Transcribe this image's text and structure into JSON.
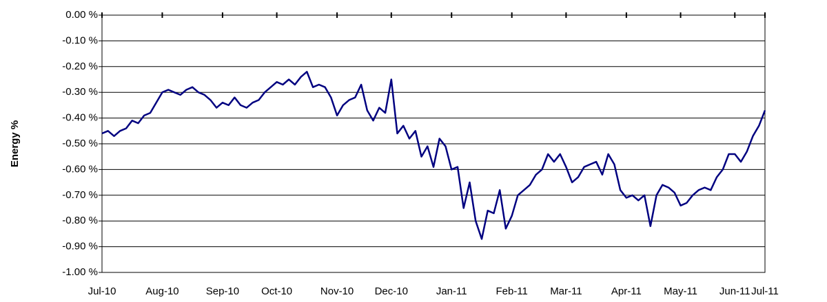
{
  "chart_data": {
    "type": "line",
    "ylabel": "Energy %",
    "categories": [
      "Jul-10",
      null,
      null,
      null,
      null,
      null,
      null,
      null,
      null,
      null,
      "Aug-10",
      null,
      null,
      null,
      null,
      null,
      null,
      null,
      null,
      null,
      "Sep-10",
      null,
      null,
      null,
      null,
      null,
      null,
      null,
      null,
      "Oct-10",
      null,
      null,
      null,
      null,
      null,
      null,
      null,
      null,
      null,
      "Nov-10",
      null,
      null,
      null,
      null,
      null,
      null,
      null,
      null,
      "Dec-10",
      null,
      null,
      null,
      null,
      null,
      null,
      null,
      null,
      null,
      "Jan-11",
      null,
      null,
      null,
      null,
      null,
      null,
      null,
      null,
      null,
      "Feb-11",
      null,
      null,
      null,
      null,
      null,
      null,
      null,
      null,
      "Mar-11",
      null,
      null,
      null,
      null,
      null,
      null,
      null,
      null,
      null,
      "Apr-11",
      null,
      null,
      null,
      null,
      null,
      null,
      null,
      null,
      "May-11",
      null,
      null,
      null,
      null,
      null,
      null,
      null,
      null,
      "Jun-11",
      null,
      null,
      null,
      null,
      "Jul-11"
    ],
    "series": [
      {
        "name": "Energy",
        "color": "#000080",
        "values": [
          -0.46,
          -0.45,
          -0.47,
          -0.45,
          -0.44,
          -0.41,
          -0.42,
          -0.39,
          -0.38,
          -0.34,
          -0.3,
          -0.29,
          -0.3,
          -0.31,
          -0.29,
          -0.28,
          -0.3,
          -0.31,
          -0.33,
          -0.36,
          -0.34,
          -0.35,
          -0.32,
          -0.35,
          -0.36,
          -0.34,
          -0.33,
          -0.3,
          -0.28,
          -0.26,
          -0.27,
          -0.25,
          -0.27,
          -0.24,
          -0.22,
          -0.28,
          -0.27,
          -0.28,
          -0.32,
          -0.39,
          -0.35,
          -0.33,
          -0.32,
          -0.27,
          -0.37,
          -0.41,
          -0.36,
          -0.38,
          -0.25,
          -0.46,
          -0.43,
          -0.48,
          -0.45,
          -0.55,
          -0.51,
          -0.59,
          -0.48,
          -0.51,
          -0.6,
          -0.59,
          -0.75,
          -0.65,
          -0.8,
          -0.87,
          -0.76,
          -0.77,
          -0.68,
          -0.83,
          -0.78,
          -0.7,
          -0.68,
          -0.66,
          -0.62,
          -0.6,
          -0.54,
          -0.57,
          -0.54,
          -0.59,
          -0.65,
          -0.63,
          -0.59,
          -0.58,
          -0.57,
          -0.62,
          -0.54,
          -0.58,
          -0.68,
          -0.71,
          -0.7,
          -0.72,
          -0.7,
          -0.82,
          -0.7,
          -0.66,
          -0.67,
          -0.69,
          -0.74,
          -0.73,
          -0.7,
          -0.68,
          -0.67,
          -0.68,
          -0.63,
          -0.6,
          -0.54,
          -0.54,
          -0.57,
          -0.53,
          -0.47,
          -0.43,
          -0.37
        ]
      }
    ],
    "ylim": [
      -1,
      0
    ],
    "yticks": [
      {
        "value": 0,
        "label": "0.00 %"
      },
      {
        "value": -0.1,
        "label": "-0.10 %"
      },
      {
        "value": -0.2,
        "label": "-0.20 %"
      },
      {
        "value": -0.3,
        "label": "-0.30 %"
      },
      {
        "value": -0.4,
        "label": "-0.40 %"
      },
      {
        "value": -0.5,
        "label": "-0.50 %"
      },
      {
        "value": -0.6,
        "label": "-0.60 %"
      },
      {
        "value": -0.7,
        "label": "-0.70 %"
      },
      {
        "value": -0.8,
        "label": "-0.80 %"
      },
      {
        "value": -0.9,
        "label": "-0.90 %"
      },
      {
        "value": -1,
        "label": "-1.00 %"
      }
    ],
    "grid": true
  }
}
